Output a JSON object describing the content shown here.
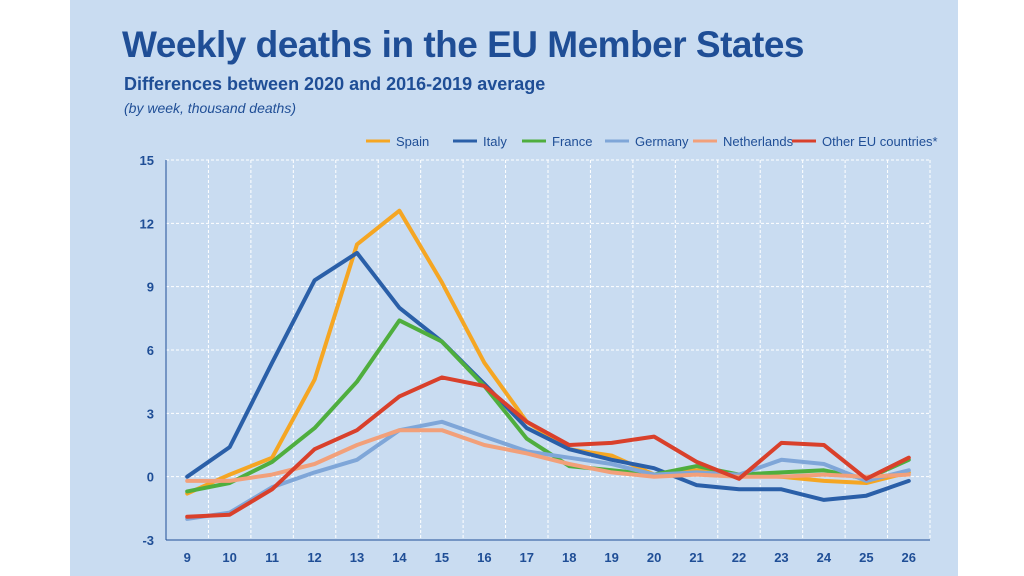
{
  "title": "Weekly deaths in the EU Member States",
  "subtitle": "Differences between  2020 and 2016-2019 average",
  "note": "(by week, thousand deaths)",
  "chart_data": {
    "type": "line",
    "x": [
      9,
      10,
      11,
      12,
      13,
      14,
      15,
      16,
      17,
      18,
      19,
      20,
      21,
      22,
      23,
      24,
      25,
      26
    ],
    "ylim": [
      -3,
      15
    ],
    "yticks": [
      -3,
      0,
      3,
      6,
      9,
      12,
      15
    ],
    "xlabel": "",
    "ylabel": "",
    "grid": true,
    "legend_position": "top-right",
    "series": [
      {
        "name": "Spain",
        "color": "#f5a623",
        "values": [
          -0.8,
          0.1,
          0.9,
          4.6,
          11.0,
          12.6,
          9.2,
          5.4,
          2.6,
          1.3,
          1.0,
          0.1,
          0.3,
          0.1,
          0.0,
          -0.2,
          -0.3,
          0.2
        ]
      },
      {
        "name": "Italy",
        "color": "#2a5fa8",
        "values": [
          0.0,
          1.4,
          5.4,
          9.3,
          10.6,
          8.0,
          6.4,
          4.4,
          2.3,
          1.3,
          0.8,
          0.4,
          -0.4,
          -0.6,
          -0.6,
          -1.1,
          -0.9,
          -0.2
        ]
      },
      {
        "name": "France",
        "color": "#4fae3e",
        "values": [
          -0.7,
          -0.3,
          0.7,
          2.3,
          4.5,
          7.4,
          6.4,
          4.3,
          1.8,
          0.5,
          0.3,
          0.1,
          0.5,
          0.1,
          0.2,
          0.3,
          -0.1,
          0.8
        ]
      },
      {
        "name": "Germany",
        "color": "#7fa6d8",
        "values": [
          -2.0,
          -1.7,
          -0.5,
          0.2,
          0.8,
          2.2,
          2.6,
          1.9,
          1.2,
          0.9,
          0.6,
          0.1,
          0.2,
          0.1,
          0.8,
          0.6,
          -0.2,
          0.3
        ]
      },
      {
        "name": "Netherlands",
        "color": "#f2a07a",
        "values": [
          -0.2,
          -0.2,
          0.1,
          0.6,
          1.5,
          2.2,
          2.2,
          1.5,
          1.1,
          0.6,
          0.2,
          0.0,
          0.1,
          0.0,
          0.0,
          0.1,
          0.0,
          0.1
        ]
      },
      {
        "name": "Other EU countries*",
        "color": "#d9402b",
        "values": [
          -1.9,
          -1.8,
          -0.6,
          1.3,
          2.2,
          3.8,
          4.7,
          4.3,
          2.6,
          1.5,
          1.6,
          1.9,
          0.7,
          -0.1,
          1.6,
          1.5,
          -0.1,
          0.9
        ]
      }
    ]
  }
}
